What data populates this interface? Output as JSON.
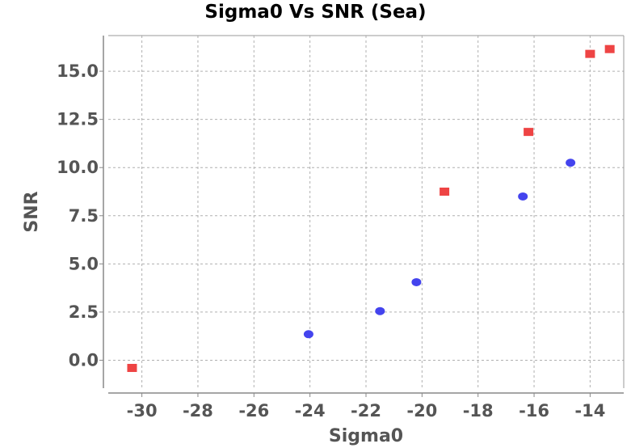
{
  "chart_data": {
    "type": "scatter",
    "title": "Sigma0 Vs SNR (Sea)",
    "xlabel": "Sigma0",
    "ylabel": "SNR",
    "xlim": [
      -31.2,
      -12.8
    ],
    "ylim": [
      -1.45,
      16.85
    ],
    "x_ticks": [
      -30,
      -28,
      -26,
      -24,
      -22,
      -20,
      -18,
      -16,
      -14
    ],
    "y_ticks": [
      0.0,
      2.5,
      5.0,
      7.5,
      10.0,
      12.5,
      15.0
    ],
    "grid": true,
    "series": [
      {
        "color": "#ee4444",
        "marker": "square",
        "points": [
          {
            "x": -30.35,
            "y": -0.4
          },
          {
            "x": -19.2,
            "y": 8.75
          },
          {
            "x": -16.2,
            "y": 11.85
          },
          {
            "x": -14.0,
            "y": 15.9
          },
          {
            "x": -13.3,
            "y": 16.15
          }
        ]
      },
      {
        "color": "#4444ee",
        "marker": "circle",
        "points": [
          {
            "x": -24.05,
            "y": 1.35
          },
          {
            "x": -21.5,
            "y": 2.55
          },
          {
            "x": -20.2,
            "y": 4.05
          },
          {
            "x": -16.4,
            "y": 8.5
          },
          {
            "x": -14.7,
            "y": 10.25
          }
        ]
      }
    ]
  }
}
